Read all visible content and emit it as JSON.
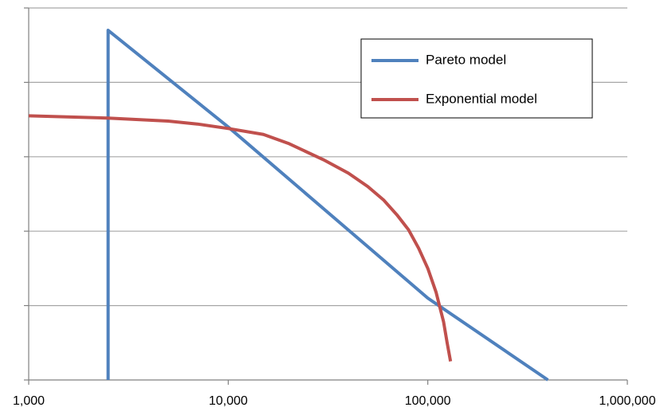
{
  "chart_data": {
    "type": "line",
    "title": "",
    "xlabel": "",
    "ylabel": "",
    "x_scale": "log",
    "xlim": [
      1000,
      1000000
    ],
    "ylim": [
      0,
      5
    ],
    "x_tick_values": [
      1000,
      10000,
      100000,
      1000000
    ],
    "x_tick_labels": [
      "1,000",
      "10,000",
      "100,000",
      "1,000,000"
    ],
    "y_tick_values": [
      0,
      1,
      2,
      3,
      4,
      5
    ],
    "y_tick_labels_visible": false,
    "grid": "horizontal",
    "legend": "top-right",
    "series": [
      {
        "name": "Pareto model",
        "color": "#4f81bd",
        "points": [
          [
            2500,
            0
          ],
          [
            2500,
            4.7
          ],
          [
            10000,
            3.4
          ],
          [
            100000,
            1.1
          ],
          [
            400000,
            0
          ]
        ]
      },
      {
        "name": "Exponential model",
        "color": "#c0504d",
        "points": [
          [
            1000,
            3.55
          ],
          [
            2500,
            3.52
          ],
          [
            5000,
            3.48
          ],
          [
            7000,
            3.44
          ],
          [
            10000,
            3.38
          ],
          [
            15000,
            3.3
          ],
          [
            20000,
            3.18
          ],
          [
            30000,
            2.96
          ],
          [
            40000,
            2.78
          ],
          [
            50000,
            2.6
          ],
          [
            60000,
            2.42
          ],
          [
            70000,
            2.22
          ],
          [
            80000,
            2.02
          ],
          [
            90000,
            1.77
          ],
          [
            100000,
            1.5
          ],
          [
            110000,
            1.18
          ],
          [
            120000,
            0.78
          ],
          [
            125000,
            0.5
          ],
          [
            130000,
            0.25
          ]
        ]
      }
    ]
  }
}
